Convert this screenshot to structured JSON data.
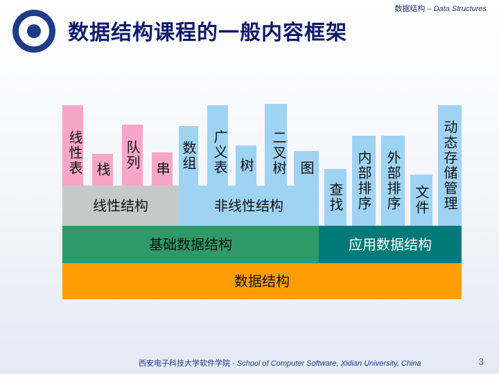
{
  "header": {
    "cn": "数据结构",
    "en": " – Data Structures"
  },
  "title": "数据结构课程的一般内容框架",
  "blocks": {
    "linear_table": "线性表",
    "stack": "栈",
    "queue": "队列",
    "string": "串",
    "array": "数组",
    "generalized_list": "广义表",
    "tree": "树",
    "binary_tree": "二叉树",
    "graph": "图",
    "search": "查找",
    "internal_sort": "内部排序",
    "external_sort": "外部排序",
    "file": "文件",
    "dynamic_storage": "动态存储管理"
  },
  "bands": {
    "linear_structure": "线性结构",
    "nonlinear_structure": "非线性结构",
    "basic_data_structures": "基础数据结构",
    "applied_data_structures": "应用数据结构",
    "data_structures": "数据结构"
  },
  "footer": {
    "cn": "西安电子科技大学软件学院",
    "en": " - School of Computer Software, Xidian University, China"
  },
  "page_number": "3",
  "colors": {
    "pink": "#f6a7c9",
    "light_blue": "#9fd3f3",
    "gray": "#c7c9c9",
    "green": "#2e9a68",
    "teal": "#007a78",
    "orange": "#ff9e04",
    "title": "#0d1a6b"
  }
}
